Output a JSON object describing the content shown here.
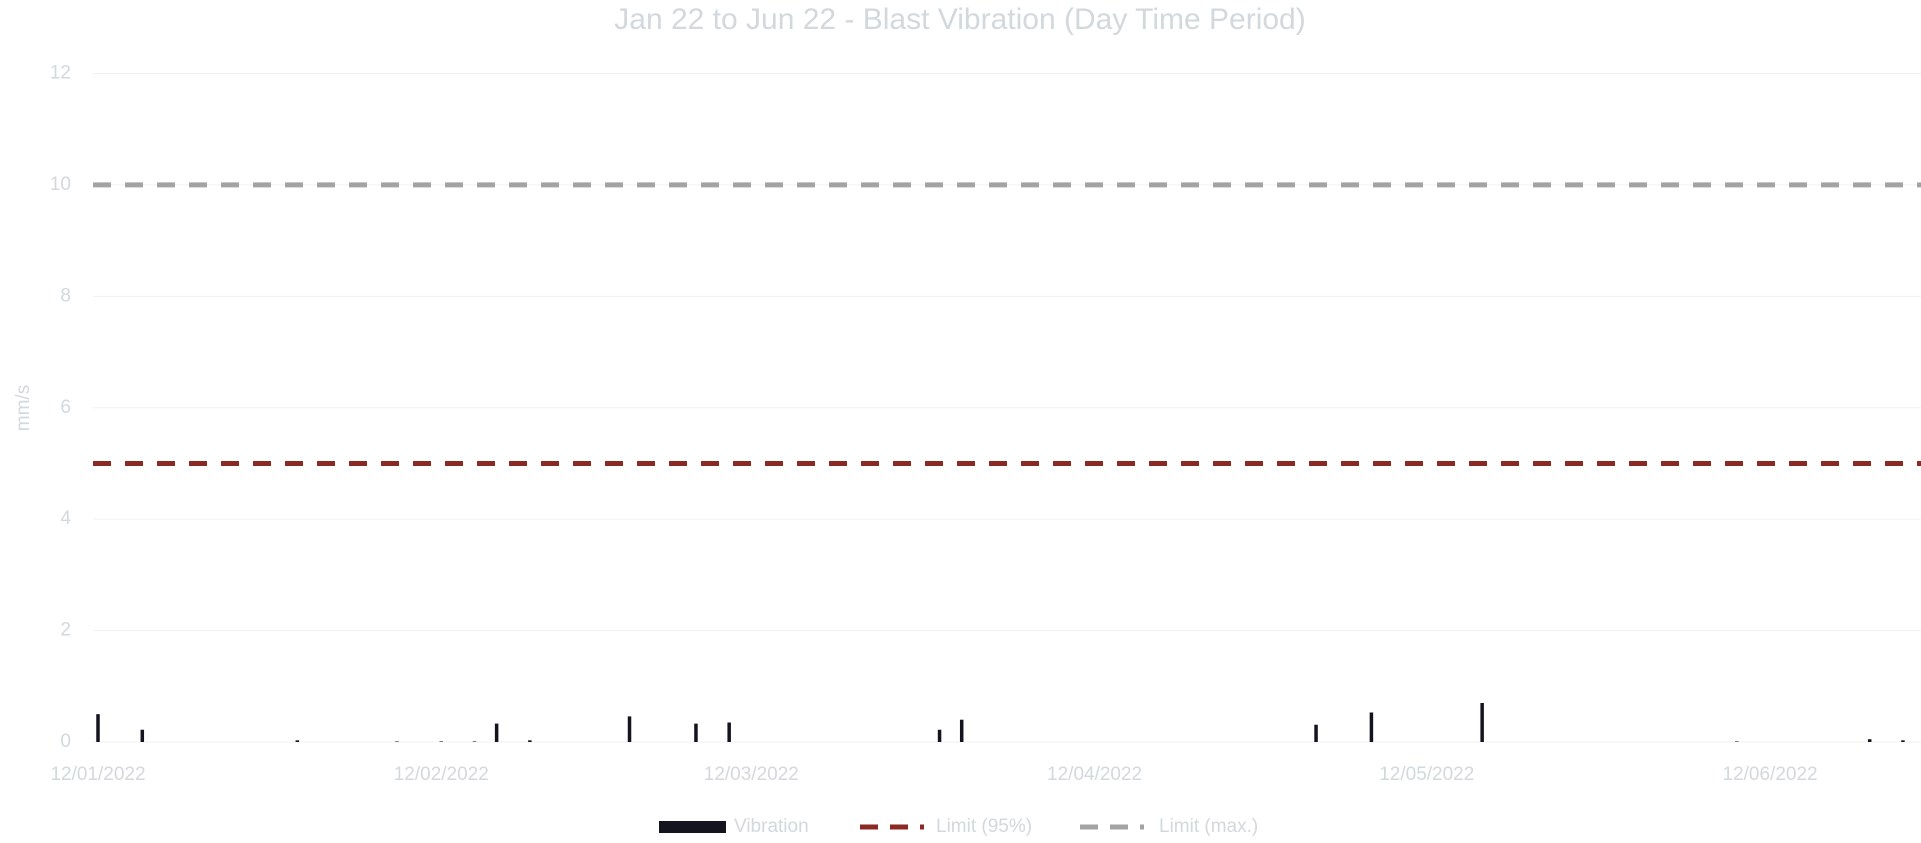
{
  "chart_data": {
    "type": "bar",
    "title": "Jan 22 to Jun 22 - Blast Vibration (Day Time Period)",
    "y_label": "mm/s",
    "x": [
      "2022-01-12",
      "2022-01-16",
      "2022-01-30",
      "2022-02-08",
      "2022-02-12",
      "2022-02-15",
      "2022-02-17",
      "2022-02-20",
      "2022-03-01",
      "2022-03-07",
      "2022-03-10",
      "2022-03-29",
      "2022-03-31",
      "2022-05-02",
      "2022-05-07",
      "2022-05-17",
      "2022-06-09",
      "2022-06-21",
      "2022-06-24"
    ],
    "series": [
      {
        "name": "Vibration",
        "color": "#14141f",
        "values": [
          0.5,
          0.22,
          0.03,
          0.01,
          0.01,
          0.01,
          0.33,
          0.03,
          0.46,
          0.33,
          0.35,
          0.22,
          0.4,
          0.31,
          0.53,
          0.7,
          0.01,
          0.05,
          0.03
        ]
      }
    ],
    "limits": [
      {
        "name": "Limit (95%)",
        "color": "#8b2a22",
        "value": 5
      },
      {
        "name": "Limit (max.)",
        "color": "#a3a3a3",
        "value": 10
      }
    ],
    "xlim": [
      "2022-01-12",
      "2022-06-25"
    ],
    "xticks": [
      {
        "value": "2022-01-12",
        "label": "12/01/2022"
      },
      {
        "value": "2022-02-12",
        "label": "12/02/2022"
      },
      {
        "value": "2022-03-12",
        "label": "12/03/2022"
      },
      {
        "value": "2022-04-12",
        "label": "12/04/2022"
      },
      {
        "value": "2022-05-12",
        "label": "12/05/2022"
      },
      {
        "value": "2022-06-12",
        "label": "12/06/2022"
      }
    ],
    "ylim": [
      0,
      12
    ],
    "yticks": [
      0,
      2,
      4,
      6,
      8,
      10,
      12
    ],
    "grid": true
  }
}
